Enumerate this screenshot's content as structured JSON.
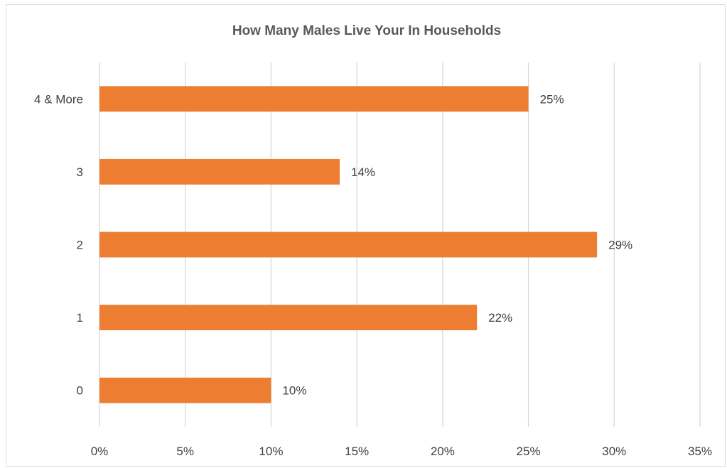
{
  "chart_data": {
    "type": "bar",
    "orientation": "horizontal",
    "title": "How Many Males Live Your In Households",
    "xlabel": "",
    "ylabel": "",
    "categories": [
      "4 & More",
      "3",
      "2",
      "1",
      "0"
    ],
    "values": [
      25,
      14,
      29,
      22,
      10
    ],
    "data_labels": [
      "25%",
      "14%",
      "29%",
      "22%",
      "10%"
    ],
    "xlim": [
      0,
      35
    ],
    "x_ticks": [
      0,
      5,
      10,
      15,
      20,
      25,
      30,
      35
    ],
    "x_tick_labels": [
      "0%",
      "5%",
      "10%",
      "15%",
      "20%",
      "25%",
      "30%",
      "35%"
    ],
    "grid": true,
    "legend": "none",
    "bar_color": "#ED7D31"
  }
}
